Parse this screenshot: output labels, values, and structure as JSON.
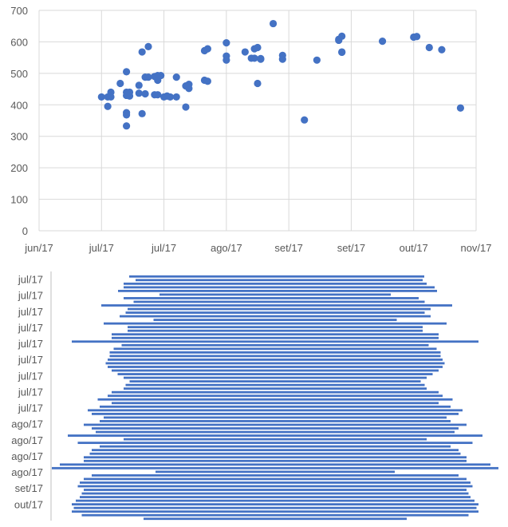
{
  "colors": {
    "series": "#4472c4",
    "grid": "#d9d9d9",
    "text": "#595959"
  },
  "chart_data": [
    {
      "type": "scatter",
      "title": "",
      "xlabel": "",
      "ylabel": "",
      "grid": true,
      "legend": "none",
      "x_tick_labels": [
        "jun/17",
        "jul/17",
        "jul/17",
        "ago/17",
        "set/17",
        "set/17",
        "out/17",
        "nov/17"
      ],
      "x_tick_dates": [
        "2017-06-01",
        "2017-06-21",
        "2017-07-11",
        "2017-07-31",
        "2017-08-20",
        "2017-09-09",
        "2017-09-29",
        "2017-10-19"
      ],
      "xlim": [
        "2017-06-01",
        "2017-10-19"
      ],
      "ylim": [
        0,
        700
      ],
      "y_ticks": [
        0,
        100,
        200,
        300,
        400,
        500,
        600,
        700
      ],
      "points": [
        [
          "2017-06-21",
          425
        ],
        [
          "2017-06-23",
          395
        ],
        [
          "2017-06-23",
          425
        ],
        [
          "2017-06-24",
          440
        ],
        [
          "2017-06-24",
          425
        ],
        [
          "2017-06-27",
          468
        ],
        [
          "2017-06-29",
          505
        ],
        [
          "2017-06-29",
          440
        ],
        [
          "2017-06-29",
          430
        ],
        [
          "2017-06-29",
          375
        ],
        [
          "2017-06-29",
          368
        ],
        [
          "2017-06-29",
          333
        ],
        [
          "2017-06-30",
          440
        ],
        [
          "2017-06-30",
          428
        ],
        [
          "2017-07-03",
          462
        ],
        [
          "2017-07-03",
          437
        ],
        [
          "2017-07-04",
          568
        ],
        [
          "2017-07-04",
          372
        ],
        [
          "2017-07-05",
          488
        ],
        [
          "2017-07-05",
          435
        ],
        [
          "2017-07-06",
          585
        ],
        [
          "2017-07-06",
          488
        ],
        [
          "2017-07-08",
          432
        ],
        [
          "2017-07-08",
          490
        ],
        [
          "2017-07-09",
          493
        ],
        [
          "2017-07-09",
          478
        ],
        [
          "2017-07-09",
          432
        ],
        [
          "2017-07-10",
          493
        ],
        [
          "2017-07-11",
          425
        ],
        [
          "2017-07-12",
          428
        ],
        [
          "2017-07-13",
          425
        ],
        [
          "2017-07-15",
          425
        ],
        [
          "2017-07-15",
          488
        ],
        [
          "2017-07-18",
          393
        ],
        [
          "2017-07-18",
          460
        ],
        [
          "2017-07-19",
          465
        ],
        [
          "2017-07-19",
          452
        ],
        [
          "2017-07-24",
          572
        ],
        [
          "2017-07-24",
          478
        ],
        [
          "2017-07-25",
          578
        ],
        [
          "2017-07-25",
          475
        ],
        [
          "2017-07-31",
          597
        ],
        [
          "2017-07-31",
          555
        ],
        [
          "2017-07-31",
          542
        ],
        [
          "2017-08-06",
          568
        ],
        [
          "2017-08-08",
          548
        ],
        [
          "2017-08-09",
          578
        ],
        [
          "2017-08-09",
          548
        ],
        [
          "2017-08-10",
          582
        ],
        [
          "2017-08-10",
          468
        ],
        [
          "2017-08-11",
          547
        ],
        [
          "2017-08-11",
          545
        ],
        [
          "2017-08-15",
          658
        ],
        [
          "2017-08-18",
          557
        ],
        [
          "2017-08-18",
          545
        ],
        [
          "2017-08-25",
          352
        ],
        [
          "2017-08-29",
          542
        ],
        [
          "2017-09-05",
          605
        ],
        [
          "2017-09-05",
          608
        ],
        [
          "2017-09-06",
          618
        ],
        [
          "2017-09-06",
          568
        ],
        [
          "2017-09-06",
          567
        ],
        [
          "2017-09-19",
          602
        ],
        [
          "2017-09-29",
          615
        ],
        [
          "2017-09-30",
          617
        ],
        [
          "2017-10-04",
          582
        ],
        [
          "2017-10-08",
          575
        ],
        [
          "2017-10-14",
          390
        ]
      ]
    },
    {
      "type": "bar",
      "orientation": "horizontal",
      "title": "",
      "grid": false,
      "legend": "none",
      "y_tick_labels": [
        "jul/17",
        "jul/17",
        "jul/17",
        "jul/17",
        "jul/17",
        "jul/17",
        "jul/17",
        "jul/17",
        "jul/17",
        "ago/17",
        "ago/17",
        "ago/17",
        "ago/17",
        "set/17",
        "out/17"
      ],
      "bar_count": 68,
      "values": [
        370,
        360,
        380,
        390,
        400,
        290,
        370,
        365,
        440,
        380,
        375,
        390,
        305,
        430,
        370,
        370,
        410,
        410,
        510,
        385,
        405,
        415,
        415,
        420,
        425,
        420,
        410,
        395,
        380,
        365,
        375,
        380,
        410,
        420,
        445,
        410,
        440,
        470,
        460,
        430,
        440,
        480,
        460,
        450,
        520,
        380,
        495,
        440,
        460,
        465,
        480,
        480,
        540,
        560,
        300,
        460,
        480,
        490,
        495,
        480,
        485,
        490,
        500,
        510,
        505,
        510,
        485,
        330
      ],
      "centers": [
        347,
        350,
        345,
        350,
        348,
        345,
        340,
        350,
        347,
        350,
        345,
        345,
        345,
        345,
        345,
        345,
        345,
        345,
        345,
        345,
        345,
        345,
        345,
        345,
        345,
        345,
        345,
        345,
        345,
        345,
        345,
        345,
        345,
        345,
        345,
        345,
        345,
        345,
        345,
        345,
        345,
        345,
        345,
        345,
        345,
        345,
        345,
        345,
        345,
        345,
        345,
        345,
        345,
        345,
        345,
        345,
        345,
        345,
        345,
        345,
        345,
        345,
        345,
        345,
        345,
        345,
        345,
        345
      ]
    }
  ]
}
